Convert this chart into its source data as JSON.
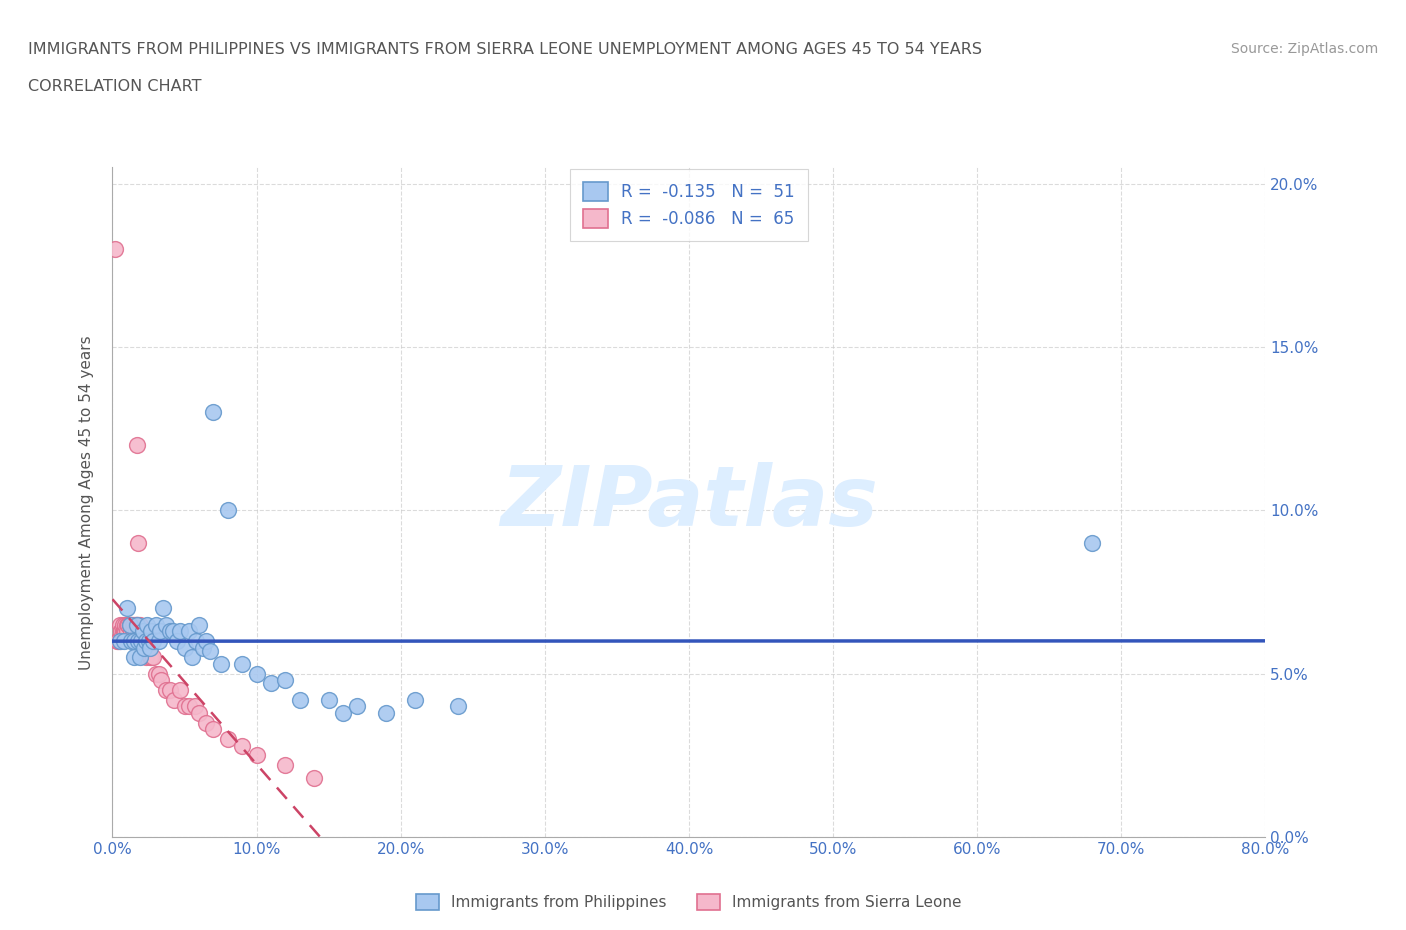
{
  "title_line1": "IMMIGRANTS FROM PHILIPPINES VS IMMIGRANTS FROM SIERRA LEONE UNEMPLOYMENT AMONG AGES 45 TO 54 YEARS",
  "title_line2": "CORRELATION CHART",
  "source_text": "Source: ZipAtlas.com",
  "ylabel": "Unemployment Among Ages 45 to 54 years",
  "xlim": [
    0.0,
    0.8
  ],
  "ylim": [
    0.0,
    0.205
  ],
  "xticks": [
    0.0,
    0.1,
    0.2,
    0.3,
    0.4,
    0.5,
    0.6,
    0.7,
    0.8
  ],
  "xticklabels": [
    "0.0%",
    "10.0%",
    "20.0%",
    "30.0%",
    "40.0%",
    "50.0%",
    "60.0%",
    "70.0%",
    "80.0%"
  ],
  "yticks": [
    0.0,
    0.05,
    0.1,
    0.15,
    0.2
  ],
  "yticklabels": [
    "0.0%",
    "5.0%",
    "10.0%",
    "15.0%",
    "20.0%"
  ],
  "philippines_color": "#a8c8f0",
  "philippines_edge_color": "#6699cc",
  "sierraleone_color": "#f5b8cb",
  "sierraleone_edge_color": "#e07090",
  "philippines_R": -0.135,
  "philippines_N": 51,
  "sierraleone_R": -0.086,
  "sierraleone_N": 65,
  "trend_philippines_color": "#3355bb",
  "trend_sierraleone_color": "#cc4466",
  "watermark_color": "#ddeeff",
  "background_color": "#ffffff",
  "tick_color": "#4472c4",
  "grid_color": "#cccccc",
  "philippines_x": [
    0.005,
    0.008,
    0.01,
    0.012,
    0.013,
    0.015,
    0.015,
    0.017,
    0.018,
    0.019,
    0.02,
    0.021,
    0.022,
    0.023,
    0.024,
    0.025,
    0.026,
    0.027,
    0.028,
    0.03,
    0.032,
    0.033,
    0.035,
    0.037,
    0.04,
    0.042,
    0.045,
    0.047,
    0.05,
    0.053,
    0.055,
    0.058,
    0.06,
    0.063,
    0.065,
    0.068,
    0.07,
    0.075,
    0.08,
    0.09,
    0.1,
    0.11,
    0.12,
    0.13,
    0.15,
    0.16,
    0.17,
    0.19,
    0.21,
    0.24,
    0.68
  ],
  "philippines_y": [
    0.06,
    0.06,
    0.07,
    0.065,
    0.06,
    0.055,
    0.06,
    0.065,
    0.06,
    0.055,
    0.06,
    0.063,
    0.058,
    0.06,
    0.065,
    0.06,
    0.058,
    0.063,
    0.06,
    0.065,
    0.06,
    0.063,
    0.07,
    0.065,
    0.063,
    0.063,
    0.06,
    0.063,
    0.058,
    0.063,
    0.055,
    0.06,
    0.065,
    0.058,
    0.06,
    0.057,
    0.13,
    0.053,
    0.1,
    0.053,
    0.05,
    0.047,
    0.048,
    0.042,
    0.042,
    0.038,
    0.04,
    0.038,
    0.042,
    0.04,
    0.09
  ],
  "sierraleone_x": [
    0.002,
    0.003,
    0.004,
    0.005,
    0.005,
    0.006,
    0.006,
    0.007,
    0.007,
    0.008,
    0.008,
    0.009,
    0.009,
    0.01,
    0.01,
    0.011,
    0.011,
    0.012,
    0.012,
    0.013,
    0.013,
    0.013,
    0.014,
    0.014,
    0.015,
    0.015,
    0.016,
    0.016,
    0.016,
    0.017,
    0.017,
    0.018,
    0.018,
    0.018,
    0.019,
    0.019,
    0.02,
    0.02,
    0.021,
    0.022,
    0.022,
    0.023,
    0.024,
    0.025,
    0.026,
    0.027,
    0.028,
    0.03,
    0.032,
    0.034,
    0.037,
    0.04,
    0.043,
    0.047,
    0.05,
    0.053,
    0.057,
    0.06,
    0.065,
    0.07,
    0.08,
    0.09,
    0.1,
    0.12,
    0.14
  ],
  "sierraleone_y": [
    0.18,
    0.06,
    0.06,
    0.06,
    0.065,
    0.063,
    0.063,
    0.063,
    0.065,
    0.063,
    0.063,
    0.063,
    0.065,
    0.065,
    0.063,
    0.065,
    0.065,
    0.065,
    0.065,
    0.065,
    0.063,
    0.065,
    0.065,
    0.063,
    0.065,
    0.063,
    0.065,
    0.065,
    0.063,
    0.12,
    0.065,
    0.065,
    0.09,
    0.063,
    0.063,
    0.065,
    0.063,
    0.063,
    0.063,
    0.058,
    0.06,
    0.055,
    0.058,
    0.058,
    0.055,
    0.055,
    0.055,
    0.05,
    0.05,
    0.048,
    0.045,
    0.045,
    0.042,
    0.045,
    0.04,
    0.04,
    0.04,
    0.038,
    0.035,
    0.033,
    0.03,
    0.028,
    0.025,
    0.022,
    0.018
  ]
}
